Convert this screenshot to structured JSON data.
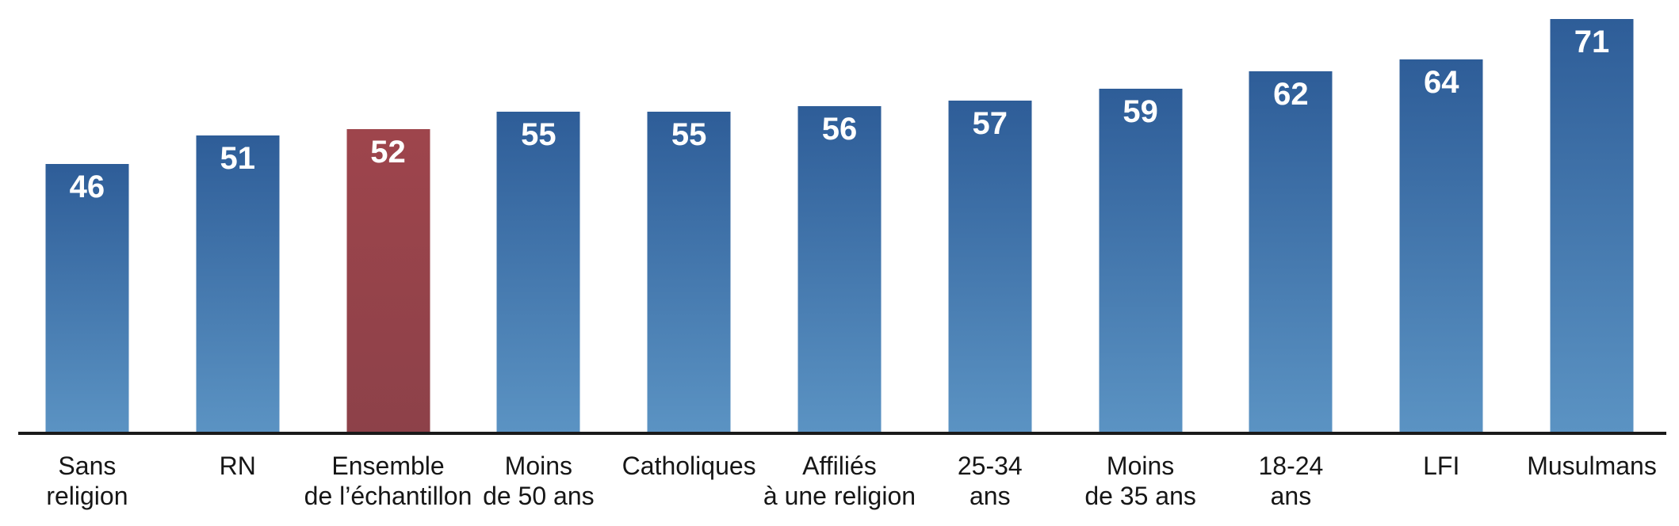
{
  "chart_data": {
    "type": "bar",
    "categories": [
      "Sans religion",
      "RN",
      "Ensemble de l’échantillon",
      "Moins de 50 ans",
      "Catholiques",
      "Affiliés à une religion",
      "25-34 ans",
      "Moins de 35 ans",
      "18-24 ans",
      "LFI",
      "Musulmans"
    ],
    "category_lines": [
      [
        "Sans",
        "religion"
      ],
      [
        "RN"
      ],
      [
        "Ensemble",
        "de l’échantillon"
      ],
      [
        "Moins",
        "de 50 ans"
      ],
      [
        "Catholiques"
      ],
      [
        "Affiliés",
        "à une religion"
      ],
      [
        "25-34",
        "ans"
      ],
      [
        "Moins",
        "de 35 ans"
      ],
      [
        "18-24",
        "ans"
      ],
      [
        "LFI"
      ],
      [
        "Musulmans"
      ]
    ],
    "values": [
      46,
      51,
      52,
      55,
      55,
      56,
      57,
      59,
      62,
      64,
      71
    ],
    "highlight_index": 2,
    "baseline": 0,
    "grid": false,
    "legend": "none",
    "value_labels_position": "inside-top",
    "colors": {
      "bar_top": "#2e5d98",
      "bar_bottom": "#5b93c3",
      "highlight_top": "#9e454c",
      "highlight_bottom": "#8d4149",
      "value_label": "#ffffff",
      "category_label": "#161616",
      "axis_line": "#1a1a1a"
    }
  }
}
